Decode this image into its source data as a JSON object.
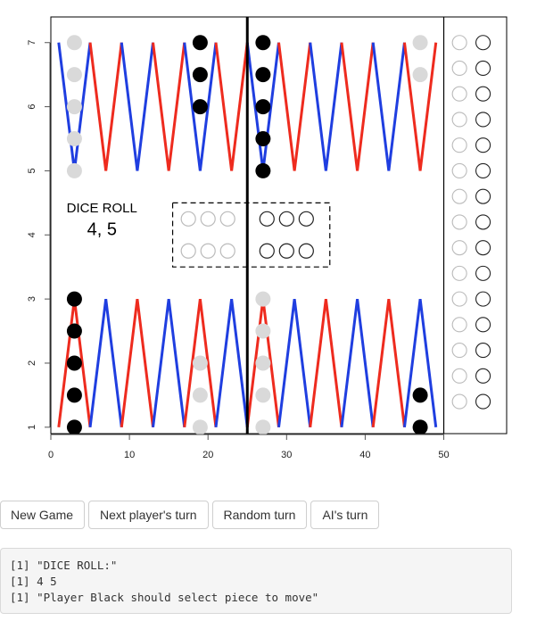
{
  "chart_data": {
    "type": "scatter",
    "xlim": [
      0,
      58
    ],
    "ylim": [
      0.9,
      7.4
    ],
    "x_ticks": [
      "0",
      "10",
      "20",
      "30",
      "40",
      "50"
    ],
    "y_ticks": [
      "1",
      "2",
      "3",
      "4",
      "5",
      "6",
      "7"
    ],
    "colors": {
      "red": "#ee2b1e",
      "blue": "#1f3ee0",
      "black": "#000000",
      "white_piece": "#d9d9d9",
      "outline": "#bbbbbb"
    },
    "triangles_top": [
      {
        "base": [
          1,
          5
        ],
        "color": "blue"
      },
      {
        "base": [
          5,
          9
        ],
        "color": "red"
      },
      {
        "base": [
          9,
          13
        ],
        "color": "blue"
      },
      {
        "base": [
          13,
          17
        ],
        "color": "red"
      },
      {
        "base": [
          17,
          21
        ],
        "color": "blue"
      },
      {
        "base": [
          21,
          25
        ],
        "color": "red"
      },
      {
        "base": [
          25,
          29
        ],
        "color": "blue"
      },
      {
        "base": [
          29,
          33
        ],
        "color": "red"
      },
      {
        "base": [
          33,
          37
        ],
        "color": "blue"
      },
      {
        "base": [
          37,
          41
        ],
        "color": "red"
      },
      {
        "base": [
          41,
          45
        ],
        "color": "blue"
      },
      {
        "base": [
          45,
          49
        ],
        "color": "red"
      }
    ],
    "triangles_bottom": [
      {
        "base": [
          1,
          5
        ],
        "color": "red"
      },
      {
        "base": [
          5,
          9
        ],
        "color": "blue"
      },
      {
        "base": [
          9,
          13
        ],
        "color": "red"
      },
      {
        "base": [
          13,
          17
        ],
        "color": "blue"
      },
      {
        "base": [
          17,
          21
        ],
        "color": "red"
      },
      {
        "base": [
          21,
          25
        ],
        "color": "blue"
      },
      {
        "base": [
          25,
          29
        ],
        "color": "red"
      },
      {
        "base": [
          29,
          33
        ],
        "color": "blue"
      },
      {
        "base": [
          33,
          37
        ],
        "color": "red"
      },
      {
        "base": [
          37,
          41
        ],
        "color": "blue"
      },
      {
        "base": [
          41,
          45
        ],
        "color": "red"
      },
      {
        "base": [
          45,
          49
        ],
        "color": "blue"
      }
    ],
    "black_pieces": [
      [
        19,
        7
      ],
      [
        19,
        6.5
      ],
      [
        19,
        6
      ],
      [
        27,
        7
      ],
      [
        27,
        6.5
      ],
      [
        27,
        6
      ],
      [
        27,
        5.5
      ],
      [
        27,
        5
      ],
      [
        3,
        3
      ],
      [
        3,
        2.5
      ],
      [
        3,
        2
      ],
      [
        3,
        1.5
      ],
      [
        3,
        1
      ],
      [
        47,
        1.5
      ],
      [
        47,
        1
      ]
    ],
    "white_pieces": [
      [
        3,
        7
      ],
      [
        3,
        6.5
      ],
      [
        3,
        6
      ],
      [
        3,
        5.5
      ],
      [
        3,
        5
      ],
      [
        47,
        7
      ],
      [
        47,
        6.5
      ],
      [
        19,
        2
      ],
      [
        19,
        1.5
      ],
      [
        19,
        1
      ],
      [
        27,
        3
      ],
      [
        27,
        2.5
      ],
      [
        27,
        2
      ],
      [
        27,
        1.5
      ],
      [
        27,
        1
      ]
    ],
    "off_white_x": 52,
    "off_black_x": 55,
    "off_y": [
      7,
      6.6,
      6.2,
      5.8,
      5.4,
      5,
      4.6,
      4.2,
      3.8,
      3.4,
      3,
      2.6,
      2.2,
      1.8,
      1.4
    ],
    "dice_box": {
      "x": [
        15.5,
        35.5
      ],
      "y": [
        3.5,
        4.5
      ]
    },
    "dice_white": [
      [
        17.5,
        4.25
      ],
      [
        20,
        4.25
      ],
      [
        22.5,
        4.25
      ],
      [
        17.5,
        3.75
      ],
      [
        20,
        3.75
      ],
      [
        22.5,
        3.75
      ]
    ],
    "dice_black": [
      [
        27.5,
        4.25
      ],
      [
        30,
        4.25
      ],
      [
        32.5,
        4.25
      ],
      [
        27.5,
        3.75
      ],
      [
        30,
        3.75
      ],
      [
        32.5,
        3.75
      ]
    ],
    "bar_x": 25,
    "right_border_x": 50,
    "dice_roll_title": "DICE ROLL",
    "dice_roll_value": "4, 5",
    "dice_text_pos": [
      6.5,
      4.35
    ],
    "dice_value_pos": [
      6.5,
      4.0
    ]
  },
  "buttons": {
    "new_game": "New Game",
    "next_turn": "Next player's turn",
    "random_turn": "Random turn",
    "ai_turn": "AI's turn"
  },
  "console": {
    "lines": [
      "[1] \"DICE ROLL:\"",
      "[1] 4 5",
      "[1] \"Player Black should select piece to move\""
    ]
  }
}
